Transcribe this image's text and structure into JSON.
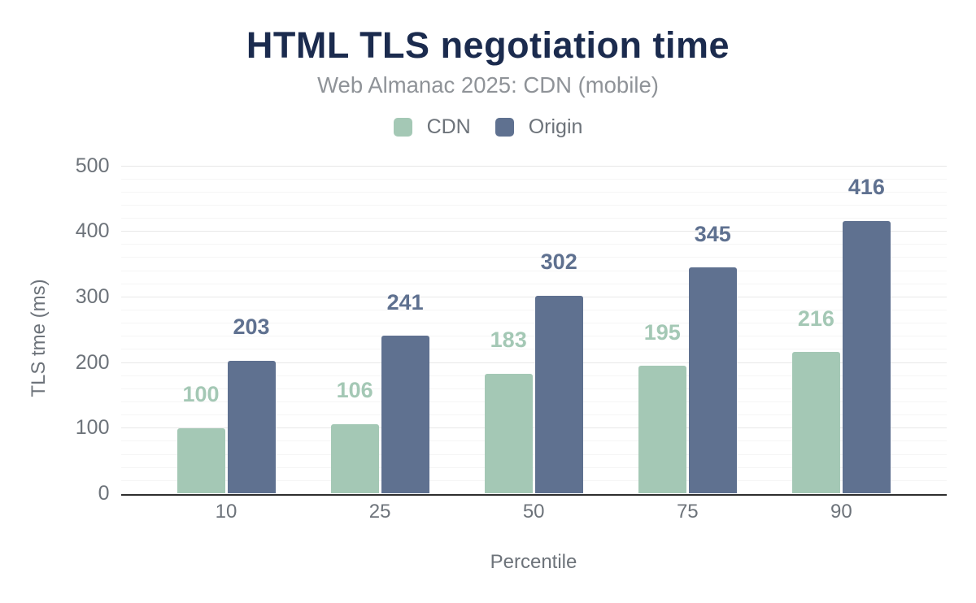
{
  "chart_data": {
    "type": "bar",
    "title": "HTML TLS negotiation time",
    "subtitle": "Web Almanac 2025: CDN (mobile)",
    "xlabel": "Percentile",
    "ylabel": "TLS tme (ms)",
    "categories": [
      "10",
      "25",
      "50",
      "75",
      "90"
    ],
    "series": [
      {
        "name": "CDN",
        "color": "#a4c8b5",
        "values": [
          100,
          106,
          183,
          195,
          216
        ]
      },
      {
        "name": "Origin",
        "color": "#5f7190",
        "values": [
          203,
          241,
          302,
          345,
          416
        ]
      }
    ],
    "ylim": [
      0,
      500
    ],
    "ytick_interval": 100,
    "minor_ytick_interval": 20,
    "yticks": [
      "0",
      "100",
      "200",
      "300",
      "400",
      "500"
    ],
    "grid": "horizontal",
    "legend_position": "top",
    "value_labels_shown": true
  },
  "colors": {
    "background": "#ffffff",
    "title": "#1b2b4e",
    "subtitle": "#8f9398",
    "axis_text": "#6d737a",
    "major_grid": "#e8e8e8",
    "minor_grid": "#f5f5f5",
    "axis_line": "#2e2e2e"
  }
}
